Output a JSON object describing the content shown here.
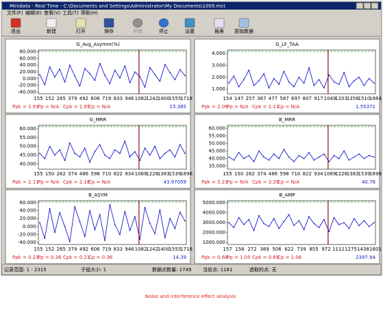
{
  "window": {
    "title": "Minidata - Real Time - C:\\Documents and Settings\\Administrator\\My Documents\\1009.mct",
    "menu": [
      "文件(F)",
      "编辑(E)",
      "查看(V)",
      "工具(T)",
      "帮助(H)"
    ],
    "toolbar": [
      "退出",
      "新建",
      "打开",
      "保存",
      "开始",
      "停止",
      "设置",
      "报表",
      "原始数据"
    ]
  },
  "chart_data": [
    {
      "type": "line",
      "title": "G_Avg_Asymm(%)",
      "color": "#1a1ad0",
      "ylim": [
        -45,
        85
      ],
      "yticks": [
        {
          "value": 80,
          "label": "80.000"
        },
        {
          "value": 60,
          "label": "60.000"
        },
        {
          "value": 40,
          "label": "40.000"
        },
        {
          "value": 20,
          "label": "20.000"
        },
        {
          "value": 0,
          "label": "0.000"
        },
        {
          "value": -20,
          "label": "-20.000"
        },
        {
          "value": -40,
          "label": "-40.000"
        }
      ],
      "x_labels": [
        "155",
        "152",
        "265",
        "379",
        "492",
        "606",
        "719",
        "833",
        "946",
        "1082",
        "1242",
        "1400",
        "1555",
        "1718"
      ],
      "values": [
        12,
        -18,
        35,
        5,
        28,
        -10,
        40,
        8,
        -22,
        30,
        15,
        -5,
        45,
        10,
        -15,
        25,
        2,
        38,
        -12,
        20,
        6,
        -25,
        33,
        12,
        -8,
        42,
        18,
        -3,
        27,
        9
      ],
      "stats": [
        "Ppk = 1.91",
        "Pp = N/A",
        "Cpk = 1.95",
        "Cp = N/A"
      ],
      "readout": "15.385"
    },
    {
      "type": "line",
      "title": "G_LF_TAA",
      "color": "#1a1ad0",
      "ylim": [
        0.6,
        4.3
      ],
      "yticks": [
        {
          "value": 4,
          "label": "4.000"
        },
        {
          "value": 3,
          "label": "3.000"
        },
        {
          "value": 2,
          "label": "2.000"
        },
        {
          "value": 1,
          "label": "1.000"
        }
      ],
      "x_labels": [
        "154",
        "147",
        "257",
        "367",
        "477",
        "587",
        "697",
        "807",
        "917",
        "1049",
        "1203",
        "1356",
        "1510",
        "1664"
      ],
      "values": [
        1.5,
        2.1,
        1.2,
        1.8,
        2.6,
        1.3,
        1.7,
        2.3,
        1.1,
        1.9,
        1.4,
        2.5,
        1.6,
        1.2,
        2.0,
        1.5,
        2.8,
        1.3,
        1.8,
        1.1,
        2.2,
        1.6,
        1.4,
        2.4,
        1.2,
        1.7,
        2.0,
        1.3,
        1.9,
        1.5
      ],
      "stats": [
        "Ppk = 2.09",
        "Pp = N/A",
        "Cpk = 2.13",
        "Cp = N/A"
      ],
      "readout": "1.55371"
    },
    {
      "type": "line",
      "title": "G_MRR",
      "color": "#1a1ad0",
      "ylim": [
        37,
        62
      ],
      "yticks": [
        {
          "value": 60,
          "label": "60.000"
        },
        {
          "value": 55,
          "label": "55.000"
        },
        {
          "value": 50,
          "label": "50.000"
        },
        {
          "value": 45,
          "label": "45.000"
        },
        {
          "value": 40,
          "label": "40.000"
        }
      ],
      "x_labels": [
        "155",
        "150",
        "262",
        "374",
        "486",
        "598",
        "710",
        "822",
        "934",
        "1069",
        "1226",
        "1383",
        "1539",
        "1696"
      ],
      "values": [
        46,
        43,
        50,
        45,
        48,
        42,
        52,
        46,
        44,
        49,
        41,
        47,
        51,
        45,
        43,
        48,
        46,
        53,
        44,
        47,
        42,
        49,
        45,
        50,
        43,
        46,
        48,
        44,
        51,
        46
      ],
      "stats": [
        "Ppk = 2.11",
        "Pp = N/A",
        "Cpk = 2.16",
        "Cp = N/A"
      ],
      "readout": "43.97059"
    },
    {
      "type": "line",
      "title": "B_MRR",
      "color": "#1a1ad0",
      "ylim": [
        33,
        62
      ],
      "yticks": [
        {
          "value": 60,
          "label": "60.000"
        },
        {
          "value": 55,
          "label": "55.000"
        },
        {
          "value": 50,
          "label": "50.000"
        },
        {
          "value": 45,
          "label": "45.000"
        },
        {
          "value": 40,
          "label": "40.000"
        },
        {
          "value": 35,
          "label": "35.000"
        }
      ],
      "x_labels": [
        "155",
        "150",
        "262",
        "374",
        "486",
        "598",
        "710",
        "822",
        "934",
        "1069",
        "1226",
        "1383",
        "1539",
        "1696"
      ],
      "values": [
        41,
        39,
        44,
        40,
        42,
        38,
        45,
        41,
        39,
        43,
        40,
        46,
        41,
        38,
        42,
        40,
        44,
        39,
        41,
        43,
        38,
        42,
        40,
        45,
        39,
        41,
        43,
        40,
        42,
        41
      ],
      "stats": [
        "Ppk = 3.21",
        "Pp = N/A",
        "Cpk = 3.29",
        "Cp = N/A"
      ],
      "readout": "40.76"
    },
    {
      "type": "line",
      "title": "B_ASYM",
      "color": "#1a1ad0",
      "ylim": [
        -45,
        65
      ],
      "yticks": [
        {
          "value": 60,
          "label": "60.000"
        },
        {
          "value": 40,
          "label": "40.000"
        },
        {
          "value": 20,
          "label": "20.000"
        },
        {
          "value": 0,
          "label": "0.000"
        },
        {
          "value": -20,
          "label": "-20.000"
        },
        {
          "value": -40,
          "label": "-40.000"
        }
      ],
      "x_labels": [
        "155",
        "152",
        "265",
        "379",
        "492",
        "606",
        "719",
        "833",
        "946",
        "1082",
        "1242",
        "1400",
        "1555",
        "1718"
      ],
      "values": [
        10,
        -30,
        45,
        -15,
        35,
        0,
        -38,
        50,
        12,
        -25,
        40,
        -8,
        30,
        -35,
        55,
        5,
        -20,
        38,
        -10,
        25,
        -32,
        48,
        8,
        -18,
        42,
        -28,
        20,
        -5,
        36,
        14
      ],
      "stats": [
        "Ppk = 0.23",
        "Pp = 0.36",
        "Cpk = 0.23",
        "Cp = 0.36"
      ],
      "readout": "14.39"
    },
    {
      "type": "line",
      "title": "B_AMP",
      "color": "#1a1ad0",
      "ylim": [
        800,
        5200
      ],
      "yticks": [
        {
          "value": 5000,
          "label": "5000.000"
        },
        {
          "value": 4000,
          "label": "4000.000"
        },
        {
          "value": 3000,
          "label": "3000.000"
        },
        {
          "value": 2000,
          "label": "2000.000"
        },
        {
          "value": 1000,
          "label": "1000.000"
        }
      ],
      "x_labels": [
        "157",
        "156",
        "272",
        "389",
        "506",
        "622",
        "739",
        "855",
        "972",
        "1111",
        "1275",
        "1438",
        "1601"
      ],
      "values": [
        3000,
        2500,
        3500,
        2800,
        3300,
        2200,
        3700,
        2900,
        2600,
        3400,
        2400,
        3100,
        3800,
        2700,
        3200,
        2300,
        3600,
        2900,
        2500,
        3300,
        2100,
        3500,
        2800,
        3000,
        2400,
        3400,
        2700,
        3200,
        2600,
        3000
      ],
      "stats": [
        "Ppk = 0.68",
        "Pp = 1.05",
        "Cpk = 0.69",
        "Cp = 1.06"
      ],
      "readout": "2397.94"
    }
  ],
  "status": [
    "记录范围: 1 - 2315",
    "子组大小: 1",
    "数据点数量: 1749",
    "当前点: 1181",
    "选取的点: 无"
  ],
  "caption": "Noise and interference effect analysis"
}
